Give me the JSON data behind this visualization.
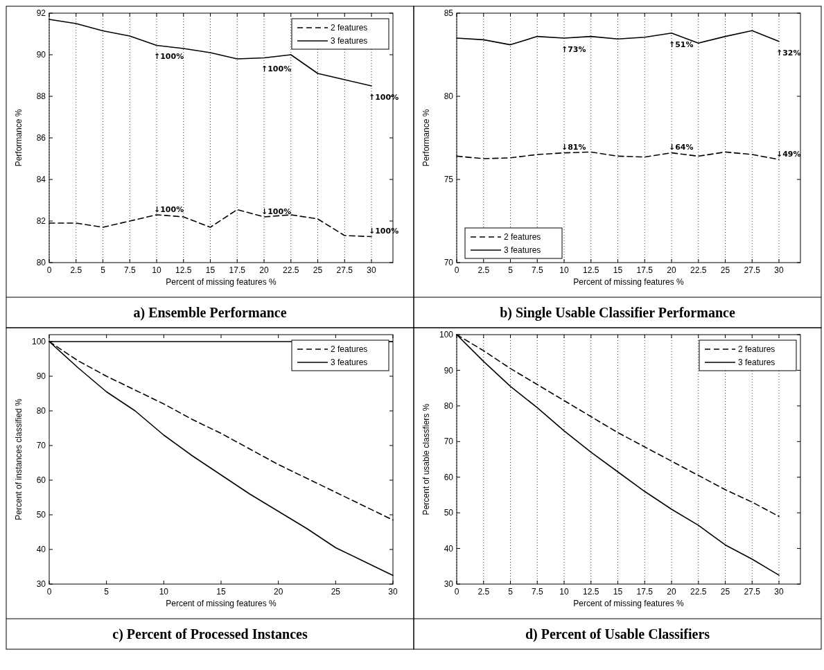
{
  "chart_data": [
    {
      "type": "line",
      "title": "a) Ensemble Performance",
      "xlabel": "Percent of missing features %",
      "ylabel": "Performance %",
      "x": [
        0,
        2.5,
        5,
        7.5,
        10,
        12.5,
        15,
        17.5,
        20,
        22.5,
        25,
        27.5,
        30
      ],
      "xlim": [
        0,
        32
      ],
      "xticks": [
        0,
        2.5,
        5,
        7.5,
        10,
        12.5,
        15,
        17.5,
        20,
        22.5,
        25,
        27.5,
        30
      ],
      "ylim": [
        80,
        92
      ],
      "yticks": [
        80,
        82,
        84,
        86,
        88,
        90,
        92
      ],
      "grid": "x",
      "legend": "top right",
      "series": [
        {
          "name": "2 features",
          "color": "#000000",
          "line_style": "dashed",
          "values": [
            81.9,
            81.9,
            81.7,
            82.0,
            82.3,
            82.2,
            81.7,
            82.55,
            82.2,
            82.3,
            82.1,
            81.3,
            81.25
          ]
        },
        {
          "name": "3 features",
          "color": "#000000",
          "line_style": "solid",
          "values": [
            91.7,
            91.5,
            91.15,
            90.9,
            90.45,
            90.3,
            90.1,
            89.8,
            89.85,
            90.0,
            89.1,
            88.8,
            88.5
          ]
        }
      ],
      "annotations": [
        {
          "text": "↑100%",
          "x": 10,
          "y": 90.45
        },
        {
          "text": "↑100%",
          "x": 20,
          "y": 89.85
        },
        {
          "text": "↑100%",
          "x": 30,
          "y": 88.5
        },
        {
          "text": "↓100%",
          "x": 10,
          "y": 82.3
        },
        {
          "text": "↓100%",
          "x": 20,
          "y": 82.2
        },
        {
          "text": "↓100%",
          "x": 30,
          "y": 81.25
        }
      ]
    },
    {
      "type": "line",
      "title": "b) Single Usable Classifier Performance",
      "xlabel": "Percent of missing features %",
      "ylabel": "Performance %",
      "x": [
        0,
        2.5,
        5,
        7.5,
        10,
        12.5,
        15,
        17.5,
        20,
        22.5,
        25,
        27.5,
        30
      ],
      "xlim": [
        0,
        32
      ],
      "xticks": [
        0,
        2.5,
        5,
        7.5,
        10,
        12.5,
        15,
        17.5,
        20,
        22.5,
        25,
        27.5,
        30
      ],
      "ylim": [
        70,
        85
      ],
      "yticks": [
        70,
        75,
        80,
        85
      ],
      "grid": "x",
      "legend": "bottom left",
      "series": [
        {
          "name": "2 features",
          "color": "#000000",
          "line_style": "dashed",
          "values": [
            76.4,
            76.25,
            76.3,
            76.5,
            76.6,
            76.65,
            76.4,
            76.35,
            76.6,
            76.4,
            76.65,
            76.5,
            76.2
          ]
        },
        {
          "name": "3 features",
          "color": "#000000",
          "line_style": "solid",
          "values": [
            83.5,
            83.4,
            83.1,
            83.6,
            83.5,
            83.6,
            83.45,
            83.55,
            83.8,
            83.2,
            83.6,
            83.95,
            83.3
          ]
        }
      ],
      "annotations": [
        {
          "text": "↑73%",
          "x": 10,
          "y": 83.5
        },
        {
          "text": "↑51%",
          "x": 20,
          "y": 83.8
        },
        {
          "text": "↑32%",
          "x": 30,
          "y": 83.3
        },
        {
          "text": "↓81%",
          "x": 10,
          "y": 76.6
        },
        {
          "text": "↓64%",
          "x": 20,
          "y": 76.6
        },
        {
          "text": "↓49%",
          "x": 30,
          "y": 76.2
        }
      ]
    },
    {
      "type": "line",
      "title": "c) Percent of Processed Instances",
      "xlabel": "Percent of missing features %",
      "ylabel": "Percent of instances classified %",
      "x": [
        0,
        2.5,
        5,
        7.5,
        10,
        12.5,
        15,
        17.5,
        20,
        22.5,
        25,
        27.5,
        30
      ],
      "xlim": [
        0,
        30
      ],
      "xticks": [
        0,
        5,
        10,
        15,
        20,
        25,
        30
      ],
      "ylim": [
        30,
        102
      ],
      "yticks": [
        30,
        40,
        50,
        60,
        70,
        80,
        90,
        100
      ],
      "legend": "top right",
      "series": [
        {
          "name": "2 features",
          "color": "#000000",
          "line_style": "dashed",
          "values": [
            100,
            94.5,
            90,
            86,
            82,
            77.5,
            73.5,
            69,
            64.5,
            60.5,
            56.5,
            52.5,
            48.5
          ]
        },
        {
          "name": "3 features",
          "color": "#000000",
          "line_style": "solid",
          "values": [
            100,
            92.5,
            85.5,
            80,
            73,
            67,
            61.5,
            56,
            51,
            46,
            40.5,
            36.5,
            32.5
          ]
        }
      ],
      "ref_lines": [
        {
          "axis": "y",
          "value": 100,
          "color": "#000000",
          "line_style": "solid"
        }
      ]
    },
    {
      "type": "line",
      "title": "d) Percent of Usable Classifiers",
      "xlabel": "Percent of missing features %",
      "ylabel": "Percent of usable classfiers %",
      "x": [
        0,
        2.5,
        5,
        7.5,
        10,
        12.5,
        15,
        17.5,
        20,
        22.5,
        25,
        27.5,
        30
      ],
      "xlim": [
        0,
        32
      ],
      "xticks": [
        0,
        2.5,
        5,
        7.5,
        10,
        12.5,
        15,
        17.5,
        20,
        22.5,
        25,
        27.5,
        30
      ],
      "ylim": [
        30,
        100
      ],
      "yticks": [
        30,
        40,
        50,
        60,
        70,
        80,
        90,
        100
      ],
      "grid": "x",
      "legend": "top right",
      "series": [
        {
          "name": "2 features",
          "color": "#000000",
          "line_style": "dashed",
          "values": [
            100,
            95.5,
            90.5,
            86,
            81.5,
            77,
            72.5,
            68.5,
            64.5,
            60.5,
            56.5,
            53,
            49
          ]
        },
        {
          "name": "3 features",
          "color": "#000000",
          "line_style": "solid",
          "values": [
            100,
            92.5,
            85.5,
            79.5,
            73,
            67,
            61.5,
            56,
            51,
            46.5,
            41,
            37,
            32.5
          ]
        }
      ]
    }
  ]
}
